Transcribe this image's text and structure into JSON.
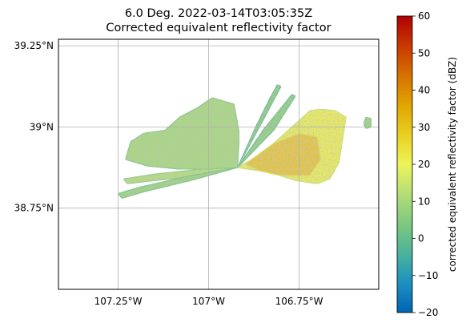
{
  "figure": {
    "title_line1": "6.0 Deg. 2022-03-14T03:05:35Z",
    "title_line2": "Corrected equivalent reflectivity factor"
  },
  "chart_data": {
    "type": "heatmap",
    "title": "6.0 Deg. 2022-03-14T03:05:35Z\nCorrected equivalent reflectivity factor",
    "x_axis": {
      "range": [
        -107.415,
        -106.53
      ],
      "ticks": [
        -107.25,
        -107.0,
        -106.75
      ],
      "tick_labels": [
        "107.25°W",
        "107°W",
        "106.75°W"
      ]
    },
    "y_axis": {
      "range": [
        38.5,
        39.27
      ],
      "ticks": [
        38.75,
        39.0,
        39.25
      ],
      "tick_labels": [
        "38.75°N",
        "39°N",
        "39.25°N"
      ]
    },
    "grid": true,
    "colorbar": {
      "label": "corrected equivalent reflectivity factor (dBZ)",
      "range": [
        -20,
        60
      ],
      "ticks": [
        -20,
        -10,
        0,
        10,
        20,
        30,
        40,
        50,
        60
      ],
      "tick_labels": [
        "−20",
        "−10",
        "0",
        "10",
        "20",
        "30",
        "40",
        "50",
        "60"
      ],
      "colors": [
        "#0065b3",
        "#1e90c0",
        "#4cb39a",
        "#7ec97f",
        "#b4dd78",
        "#ecf559",
        "#e8cf21",
        "#e0a400",
        "#d67100",
        "#c93800",
        "#b00000"
      ]
    },
    "radar_origin": [
      -106.92,
      38.875
    ],
    "echo_regions": [
      {
        "name": "west-sector",
        "dbz_typical": 10,
        "points": [
          [
            -107.215,
            38.955
          ],
          [
            -107.18,
            38.98
          ],
          [
            -107.12,
            38.99
          ],
          [
            -107.08,
            39.03
          ],
          [
            -107.03,
            39.06
          ],
          [
            -106.99,
            39.09
          ],
          [
            -106.93,
            39.07
          ],
          [
            -106.915,
            38.98
          ],
          [
            -106.92,
            38.875
          ],
          [
            -107.0,
            38.87
          ],
          [
            -107.08,
            38.87
          ],
          [
            -107.17,
            38.88
          ],
          [
            -107.23,
            38.9
          ]
        ]
      },
      {
        "name": "sw-streak-1",
        "dbz_typical": 12,
        "points": [
          [
            -106.92,
            38.875
          ],
          [
            -107.02,
            38.85
          ],
          [
            -107.15,
            38.835
          ],
          [
            -107.225,
            38.825
          ],
          [
            -107.235,
            38.84
          ],
          [
            -107.15,
            38.855
          ],
          [
            -107.02,
            38.87
          ]
        ]
      },
      {
        "name": "sw-streak-2",
        "dbz_typical": 8,
        "points": [
          [
            -106.92,
            38.875
          ],
          [
            -107.05,
            38.835
          ],
          [
            -107.18,
            38.8
          ],
          [
            -107.24,
            38.78
          ],
          [
            -107.25,
            38.795
          ],
          [
            -107.19,
            38.815
          ],
          [
            -107.05,
            38.85
          ]
        ]
      },
      {
        "name": "nne-spike-1",
        "dbz_typical": 5,
        "points": [
          [
            -106.92,
            38.875
          ],
          [
            -106.87,
            39.0
          ],
          [
            -106.83,
            39.09
          ],
          [
            -106.81,
            39.13
          ],
          [
            -106.8,
            39.125
          ],
          [
            -106.85,
            39.02
          ]
        ]
      },
      {
        "name": "nne-spike-2",
        "dbz_typical": 6,
        "points": [
          [
            -106.92,
            38.875
          ],
          [
            -106.85,
            38.99
          ],
          [
            -106.77,
            39.1
          ],
          [
            -106.76,
            39.095
          ],
          [
            -106.82,
            38.99
          ]
        ]
      },
      {
        "name": "east-sector",
        "dbz_typical": 22,
        "points": [
          [
            -106.92,
            38.875
          ],
          [
            -106.85,
            38.92
          ],
          [
            -106.78,
            38.99
          ],
          [
            -106.72,
            39.05
          ],
          [
            -106.69,
            39.055
          ],
          [
            -106.65,
            39.05
          ],
          [
            -106.62,
            39.03
          ],
          [
            -106.63,
            38.96
          ],
          [
            -106.64,
            38.89
          ],
          [
            -106.665,
            38.84
          ],
          [
            -106.7,
            38.825
          ],
          [
            -106.76,
            38.835
          ],
          [
            -106.83,
            38.86
          ]
        ]
      },
      {
        "name": "east-outlier",
        "dbz_typical": 8,
        "points": [
          [
            -106.565,
            39.03
          ],
          [
            -106.55,
            39.025
          ],
          [
            -106.55,
            39.0
          ],
          [
            -106.565,
            38.995
          ],
          [
            -106.572,
            39.01
          ]
        ]
      },
      {
        "name": "east-core",
        "dbz_typical": 30,
        "points": [
          [
            -106.9,
            38.885
          ],
          [
            -106.82,
            38.95
          ],
          [
            -106.75,
            38.98
          ],
          [
            -106.7,
            38.97
          ],
          [
            -106.69,
            38.9
          ],
          [
            -106.72,
            38.85
          ],
          [
            -106.8,
            38.85
          ],
          [
            -106.86,
            38.865
          ]
        ]
      }
    ]
  }
}
